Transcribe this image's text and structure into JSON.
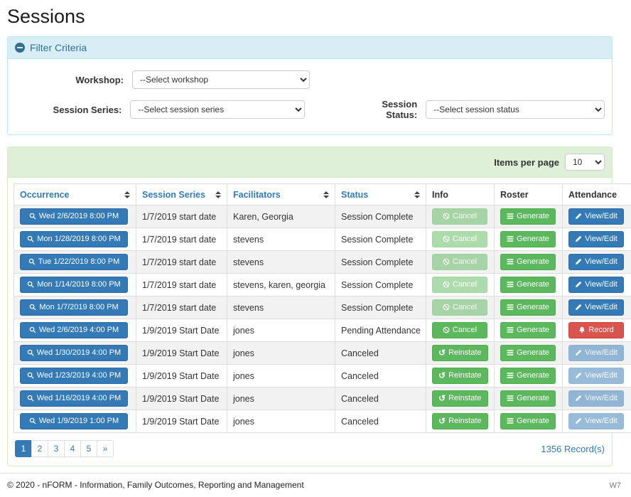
{
  "colors": {
    "primary": "#337ab7",
    "success": "#5cb85c",
    "danger": "#d9534f",
    "info_panel_bg": "#d9edf7",
    "info_panel_text": "#31708f",
    "success_panel_bg": "#dff0d8"
  },
  "page": {
    "title": "Sessions"
  },
  "filter": {
    "title": "Filter Criteria",
    "fields": [
      {
        "label": "Workshop:",
        "value": "--Select workshop"
      },
      {
        "label": "Session Series:",
        "value": "--Select session series"
      },
      {
        "label": "Session Status:",
        "value": "--Select session status"
      }
    ]
  },
  "table": {
    "items_per_page_label": "Items per page",
    "items_per_page_value": "10",
    "columns": [
      {
        "label": "Occurrence",
        "sortable": true
      },
      {
        "label": "Session Series",
        "sortable": true
      },
      {
        "label": "Facilitators",
        "sortable": true
      },
      {
        "label": "Status",
        "sortable": true
      },
      {
        "label": "Info",
        "sortable": false
      },
      {
        "label": "Roster",
        "sortable": false
      },
      {
        "label": "Attendance",
        "sortable": false
      }
    ],
    "buttons": {
      "cancel": "Cancel",
      "reinstate": "Reinstate",
      "generate": "Generate",
      "view_edit": "View/Edit",
      "record": "Record"
    },
    "rows": [
      {
        "occurrence": "Wed 2/6/2019 8:00 PM",
        "series": "1/7/2019 start date",
        "facilitators": "Karen, Georgia",
        "status": "Session Complete",
        "info": "cancel-disabled",
        "attendance": "view-edit"
      },
      {
        "occurrence": "Mon 1/28/2019 8:00 PM",
        "series": "1/7/2019 start date",
        "facilitators": "stevens",
        "status": "Session Complete",
        "info": "cancel-disabled",
        "attendance": "view-edit"
      },
      {
        "occurrence": "Tue 1/22/2019 8:00 PM",
        "series": "1/7/2019 start date",
        "facilitators": "stevens",
        "status": "Session Complete",
        "info": "cancel-disabled",
        "attendance": "view-edit"
      },
      {
        "occurrence": "Mon 1/14/2019 8:00 PM",
        "series": "1/7/2019 start date",
        "facilitators": "stevens, karen, georgia",
        "status": "Session Complete",
        "info": "cancel-disabled",
        "attendance": "view-edit"
      },
      {
        "occurrence": "Mon 1/7/2019 8:00 PM",
        "series": "1/7/2019 start date",
        "facilitators": "stevens",
        "status": "Session Complete",
        "info": "cancel-disabled",
        "attendance": "view-edit"
      },
      {
        "occurrence": "Wed 2/6/2019 4:00 PM",
        "series": "1/9/2019 Start Date",
        "facilitators": "jones",
        "status": "Pending Attendance",
        "info": "cancel",
        "attendance": "record"
      },
      {
        "occurrence": "Wed 1/30/2019 4:00 PM",
        "series": "1/9/2019 Start Date",
        "facilitators": "jones",
        "status": "Canceled",
        "info": "reinstate",
        "attendance": "view-edit-disabled"
      },
      {
        "occurrence": "Wed 1/23/2019 4:00 PM",
        "series": "1/9/2019 Start Date",
        "facilitators": "jones",
        "status": "Canceled",
        "info": "reinstate",
        "attendance": "view-edit-disabled"
      },
      {
        "occurrence": "Wed 1/16/2019 4:00 PM",
        "series": "1/9/2019 Start Date",
        "facilitators": "jones",
        "status": "Canceled",
        "info": "reinstate",
        "attendance": "view-edit-disabled"
      },
      {
        "occurrence": "Wed 1/9/2019 1:00 PM",
        "series": "1/9/2019 Start Date",
        "facilitators": "jones",
        "status": "Canceled",
        "info": "reinstate",
        "attendance": "view-edit-disabled"
      }
    ],
    "pagination": {
      "pages": [
        "1",
        "2",
        "3",
        "4",
        "5",
        "»"
      ],
      "active_index": 0
    },
    "records_text": "1356 Record(s)"
  },
  "footer": {
    "copyright": "© 2020 - nFORM - Information, Family Outcomes, Reporting and Management",
    "version": "W7"
  }
}
